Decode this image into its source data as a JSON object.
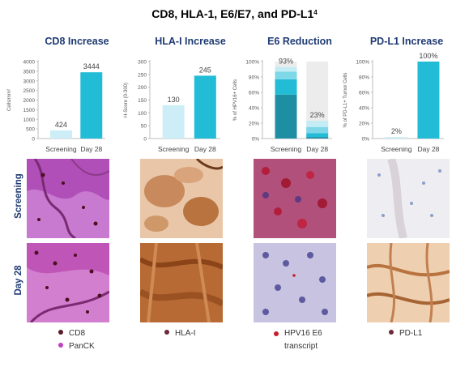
{
  "title": {
    "text": "CD8, HLA-1, E6/E7, and PD-L1",
    "superscript": "4"
  },
  "panels": [
    {
      "title": "CD8 Increase"
    },
    {
      "title": "HLA-I Increase"
    },
    {
      "title": "E6 Reduction"
    },
    {
      "title": "PD-L1 Increase"
    }
  ],
  "chart_data": [
    {
      "type": "bar",
      "title": "CD8 Increase",
      "categories": [
        "Screening",
        "Day 28"
      ],
      "values": [
        424,
        3444
      ],
      "value_labels": [
        "424",
        "3444"
      ],
      "ylabel": "Cells/mm²",
      "ylim": [
        0,
        4000
      ],
      "yticks": [
        0,
        500,
        1000,
        1500,
        2000,
        2500,
        3000,
        3500,
        4000
      ],
      "ytick_labels": [
        "0",
        "500",
        "1000",
        "1500",
        "2000",
        "2500",
        "3000",
        "3500",
        "4000"
      ],
      "colors": [
        "#cdeef6",
        "#22bcd6"
      ]
    },
    {
      "type": "bar",
      "title": "HLA-I Increase",
      "categories": [
        "Screening",
        "Day 28"
      ],
      "values": [
        130,
        245
      ],
      "value_labels": [
        "130",
        "245"
      ],
      "ylabel": "H-Score (0-300)",
      "ylim": [
        0,
        300
      ],
      "yticks": [
        0,
        50,
        100,
        150,
        200,
        250,
        300
      ],
      "ytick_labels": [
        "0",
        "50",
        "100",
        "150",
        "200",
        "250",
        "300"
      ],
      "colors": [
        "#cdeef6",
        "#22bcd6"
      ]
    },
    {
      "type": "bar",
      "stacked": true,
      "title": "E6 Reduction",
      "categories": [
        "Screening",
        "Day 28"
      ],
      "series": [
        {
          "values": [
            57,
            2
          ],
          "color": "#1e8ea3"
        },
        {
          "values": [
            20,
            5
          ],
          "color": "#22bcd6"
        },
        {
          "values": [
            10,
            8
          ],
          "color": "#7fd8e8"
        },
        {
          "values": [
            6,
            8
          ],
          "color": "#c4ecf5"
        }
      ],
      "background_values": [
        100,
        100
      ],
      "background_color": "#ececec",
      "value_labels": [
        "93%",
        "23%"
      ],
      "ylabel": "% of HPV16+ Cells",
      "ylim": [
        0,
        100
      ],
      "yticks": [
        0,
        20,
        40,
        60,
        80,
        100
      ],
      "ytick_labels": [
        "0%",
        "20%",
        "40%",
        "60%",
        "80%",
        "100%"
      ]
    },
    {
      "type": "bar",
      "title": "PD-L1 Increase",
      "categories": [
        "Screening",
        "Day 28"
      ],
      "values": [
        2,
        100
      ],
      "value_labels": [
        "2%",
        "100%"
      ],
      "ylabel": "% of PD-L1+ Tumor Cells",
      "ylim": [
        0,
        100
      ],
      "yticks": [
        0,
        20,
        40,
        60,
        80,
        100
      ],
      "ytick_labels": [
        "0%",
        "20%",
        "40%",
        "60%",
        "80%",
        "100%"
      ],
      "colors": [
        "#cdeef6",
        "#22bcd6"
      ]
    }
  ],
  "rows": [
    {
      "label": "Screening"
    },
    {
      "label": "Day 28"
    }
  ],
  "legends": [
    {
      "items": [
        {
          "label": "CD8",
          "color": "#5a1a2a"
        },
        {
          "label": "PanCK",
          "color": "#c040c0"
        }
      ]
    },
    {
      "items": [
        {
          "label": "HLA-I",
          "color": "#6b2a3a"
        }
      ]
    },
    {
      "items": [
        {
          "label": "HPV16 E6 transcript",
          "color": "#c81e2a"
        }
      ]
    },
    {
      "items": [
        {
          "label": "PD-L1",
          "color": "#6b2a3a"
        }
      ]
    }
  ]
}
